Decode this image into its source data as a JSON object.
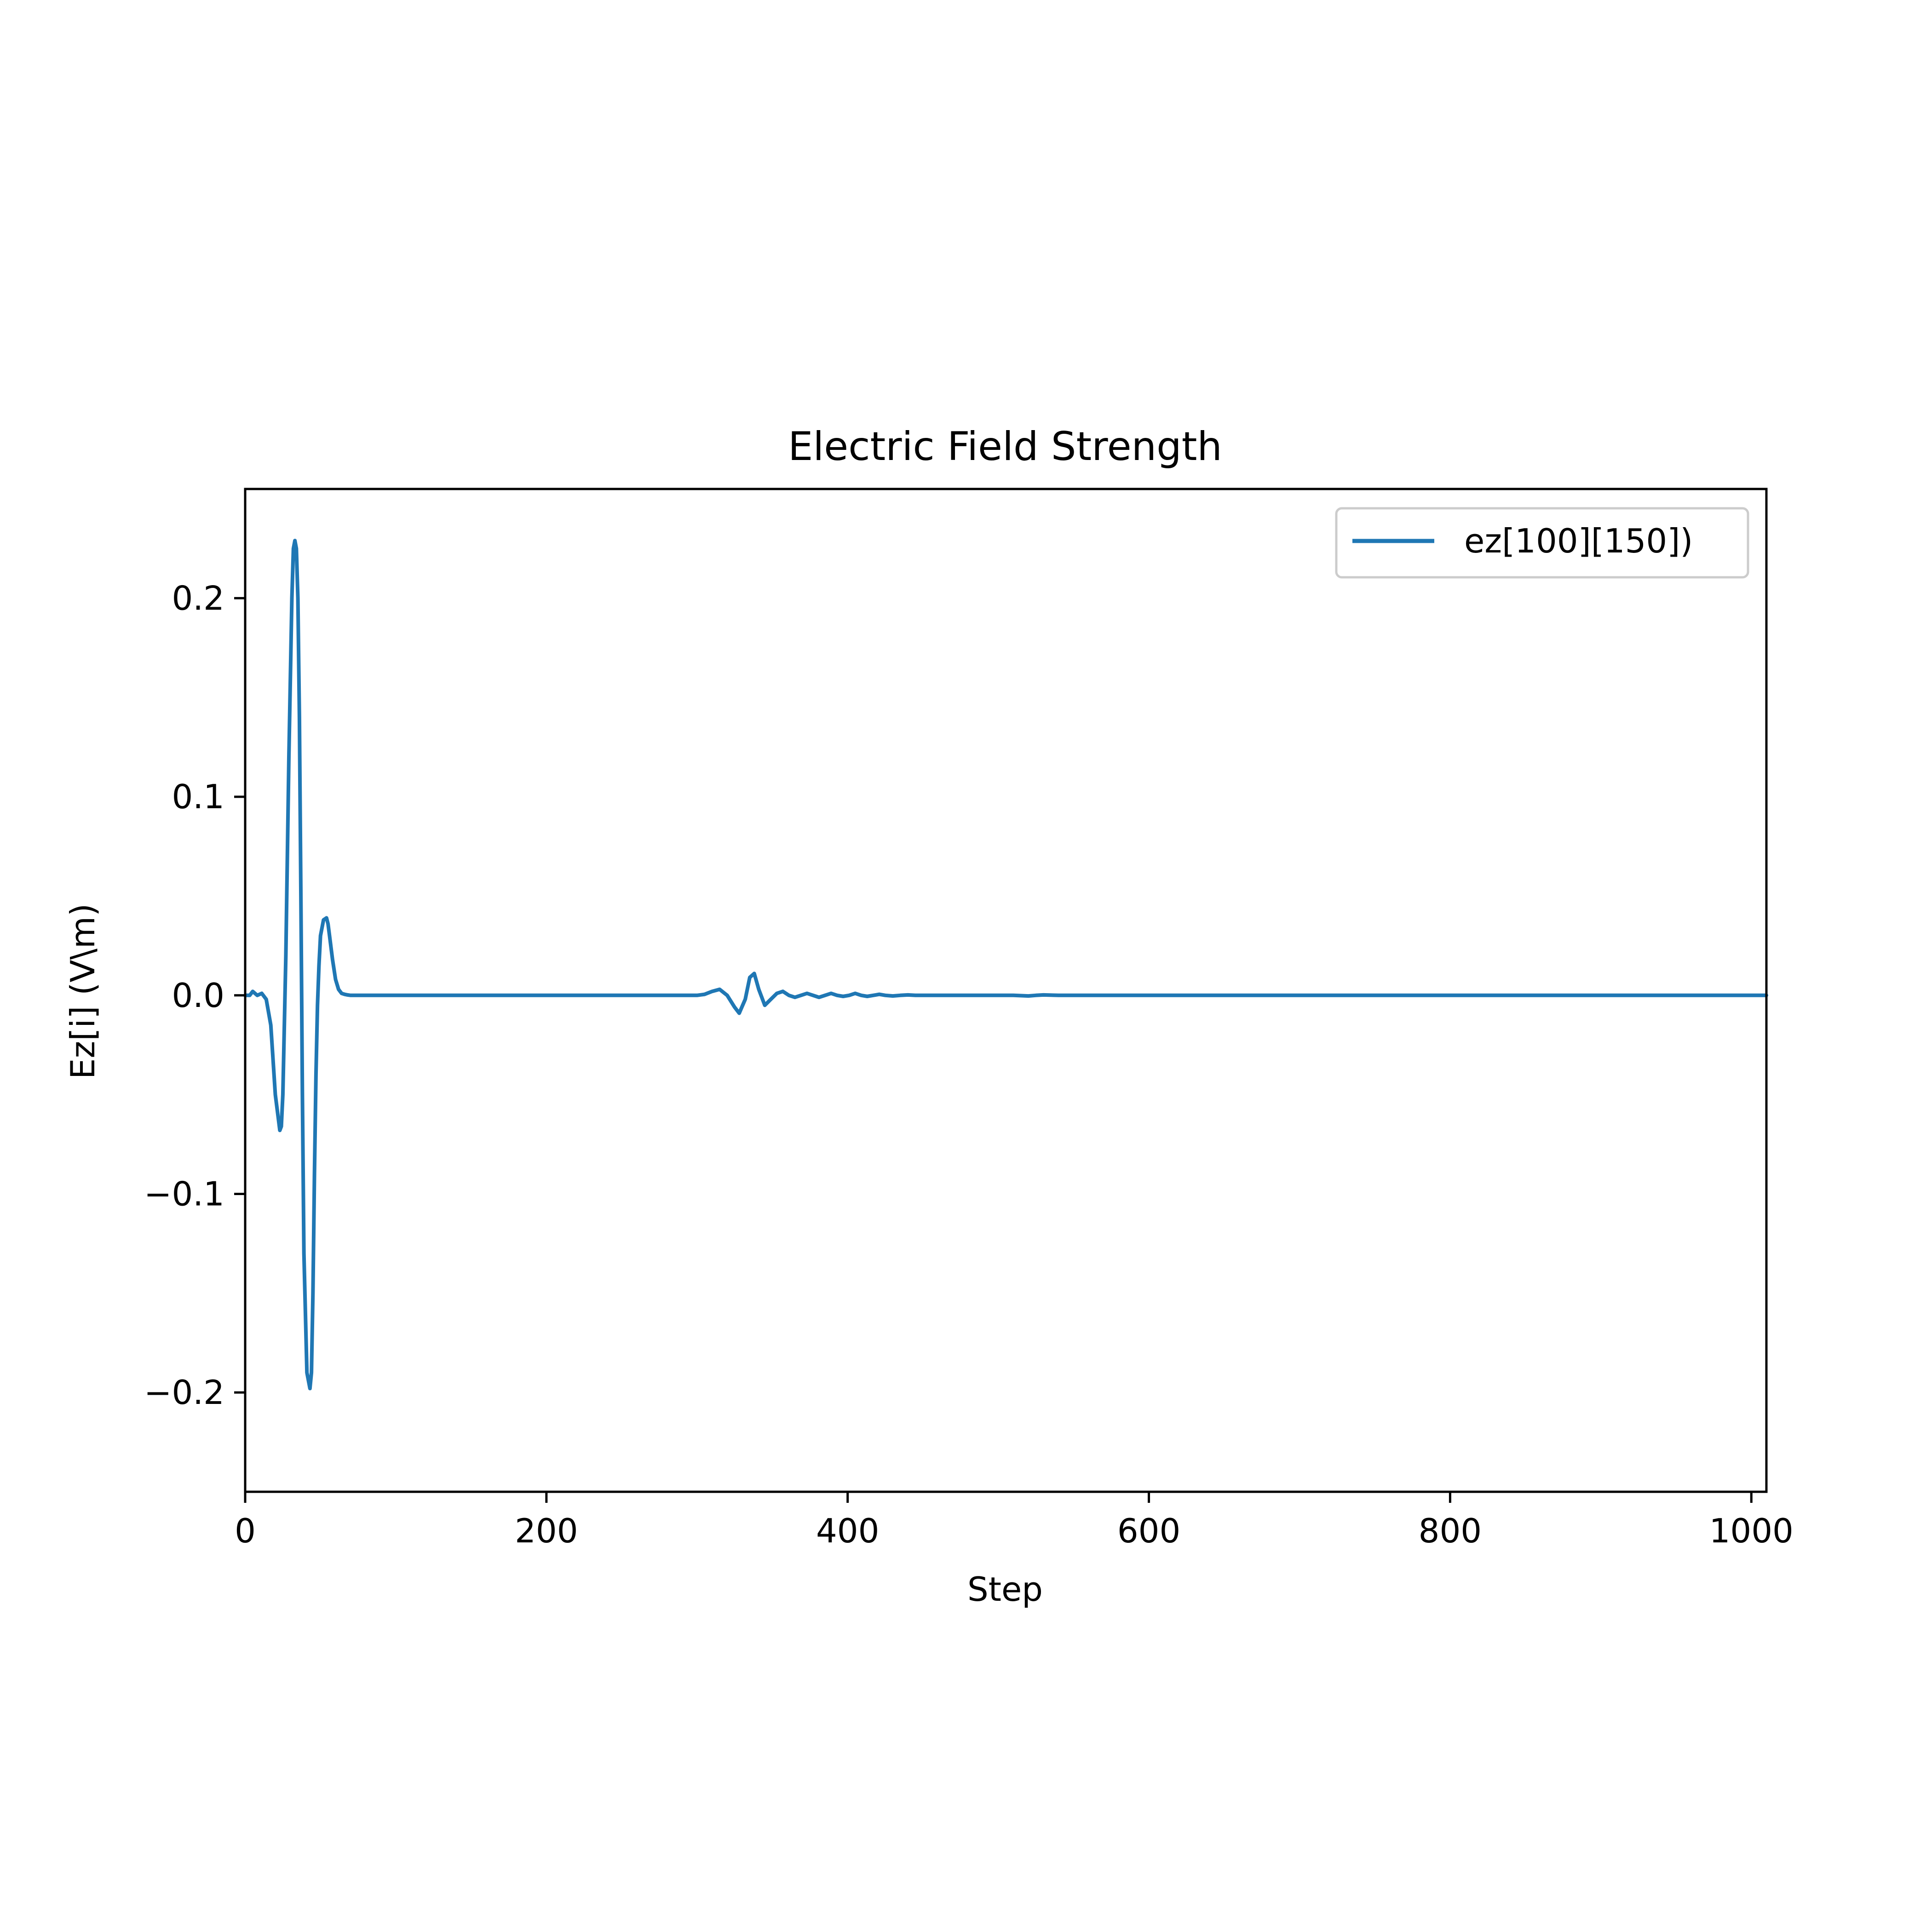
{
  "chart_data": {
    "type": "line",
    "title": "Electric Field Strength",
    "xlabel": "Step",
    "ylabel": "Ez[i] (V\\m)",
    "xlim": [
      0,
      1010
    ],
    "ylim": [
      -0.25,
      0.255
    ],
    "xticks": [
      0,
      200,
      400,
      600,
      800,
      1000
    ],
    "xtick_labels": [
      "0",
      "200",
      "400",
      "600",
      "800",
      "1000"
    ],
    "yticks": [
      -0.2,
      -0.1,
      0.0,
      0.1,
      0.2
    ],
    "ytick_labels": [
      "−0.2",
      "−0.1",
      "0.0",
      "0.1",
      "0.2"
    ],
    "grid": false,
    "legend_position": "top-right",
    "series": [
      {
        "name": "ez[100][150])",
        "color": "#1f77b4",
        "x": [
          0,
          3,
          5,
          8,
          11,
          14,
          17,
          20,
          23,
          24,
          25,
          27,
          29,
          31,
          32,
          33,
          34,
          35,
          36,
          37,
          38,
          39,
          41,
          43,
          44,
          45,
          46,
          47,
          48,
          49,
          50,
          52,
          54,
          55,
          56,
          58,
          60,
          62,
          64,
          66,
          68,
          70,
          75,
          85,
          100,
          150,
          200,
          250,
          290,
          300,
          305,
          310,
          315,
          320,
          325,
          328,
          332,
          335,
          338,
          341,
          345,
          349,
          353,
          357,
          361,
          365,
          369,
          373,
          377,
          381,
          385,
          389,
          393,
          397,
          401,
          405,
          409,
          413,
          417,
          421,
          425,
          430,
          435,
          440,
          445,
          450,
          460,
          470,
          480,
          490,
          500,
          510,
          520,
          525,
          530,
          540,
          560,
          580,
          600,
          620,
          640,
          660,
          680,
          700,
          800,
          900,
          1010
        ],
        "values": [
          0.0,
          0.0,
          0.002,
          0.0,
          0.001,
          -0.002,
          -0.015,
          -0.05,
          -0.068,
          -0.066,
          -0.05,
          0.02,
          0.12,
          0.2,
          0.225,
          0.229,
          0.225,
          0.2,
          0.14,
          0.05,
          -0.05,
          -0.13,
          -0.19,
          -0.198,
          -0.19,
          -0.15,
          -0.09,
          -0.04,
          -0.005,
          0.015,
          0.03,
          0.038,
          0.039,
          0.036,
          0.03,
          0.018,
          0.008,
          0.003,
          0.001,
          0.0005,
          0.0002,
          0.0,
          0.0,
          0.0,
          0.0,
          0.0,
          0.0,
          0.0,
          0.0,
          0.0,
          0.0005,
          0.002,
          0.003,
          0.0,
          -0.006,
          -0.009,
          -0.002,
          0.009,
          0.011,
          0.003,
          -0.005,
          -0.002,
          0.001,
          0.002,
          0.0,
          -0.001,
          0.0,
          0.001,
          0.0,
          -0.001,
          0.0,
          0.001,
          0.0,
          -0.0005,
          0.0,
          0.001,
          0.0,
          -0.0005,
          0.0,
          0.0005,
          0.0,
          -0.0003,
          0.0,
          0.0002,
          0.0,
          0.0,
          0.0,
          0.0,
          0.0,
          0.0,
          0.0,
          0.0,
          -0.0003,
          0.0,
          0.0002,
          0.0,
          0.0,
          0.0,
          0.0,
          0.0,
          0.0,
          0.0,
          0.0,
          0.0,
          0.0,
          0.0,
          0.0
        ]
      }
    ]
  }
}
